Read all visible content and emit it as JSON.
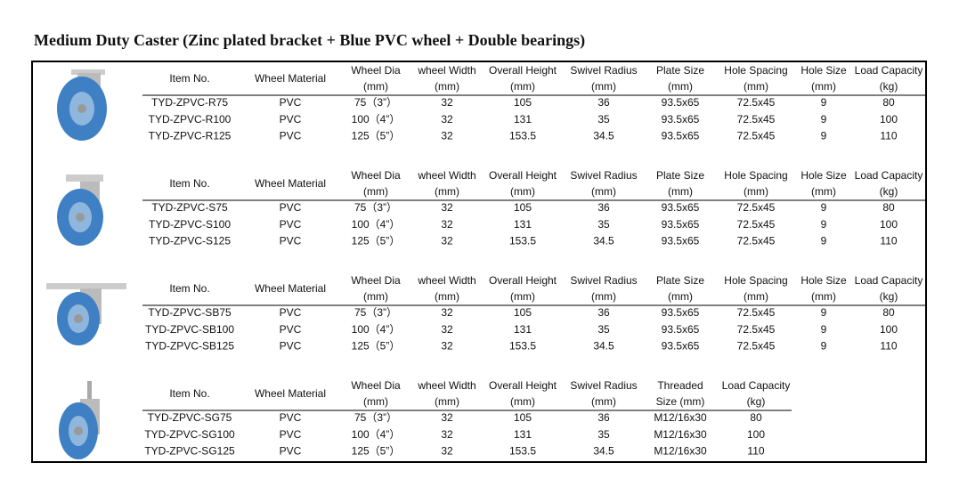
{
  "title": "Medium Duty Caster (Zinc plated bracket + Blue PVC wheel + Double bearings)",
  "sections": [
    {
      "header": [
        [
          "Item No."
        ],
        [
          "Wheel Material"
        ],
        [
          "Wheel Dia",
          "(mm)"
        ],
        [
          "wheel Width",
          "(mm)"
        ],
        [
          "Overall Height",
          "(mm)"
        ],
        [
          "Swivel Radius",
          "(mm)"
        ],
        [
          "Plate Size",
          "(mm)"
        ],
        [
          "Hole Spacing",
          "(mm)"
        ],
        [
          "Hole Size",
          "(mm)"
        ],
        [
          "Load Capacity",
          "(kg)"
        ]
      ],
      "rows": [
        [
          "TYD-ZPVC-R75",
          "PVC",
          "75（3”）",
          "32",
          "105",
          "36",
          "93.5x65",
          "72.5x45",
          "9",
          "80"
        ],
        [
          "TYD-ZPVC-R100",
          "PVC",
          "100（4”）",
          "32",
          "131",
          "35",
          "93.5x65",
          "72.5x45",
          "9",
          "100"
        ],
        [
          "TYD-ZPVC-R125",
          "PVC",
          "125（5”）",
          "32",
          "153.5",
          "34.5",
          "93.5x65",
          "72.5x45",
          "9",
          "110"
        ]
      ]
    },
    {
      "header": [
        [
          "Item No."
        ],
        [
          "Wheel Material"
        ],
        [
          "Wheel Dia",
          "(mm)"
        ],
        [
          "wheel Width",
          "(mm)"
        ],
        [
          "Overall Height",
          "(mm)"
        ],
        [
          "Swivel Radius",
          "(mm)"
        ],
        [
          "Plate Size",
          "(mm)"
        ],
        [
          "Hole Spacing",
          "(mm)"
        ],
        [
          "Hole Size",
          "(mm)"
        ],
        [
          "Load Capacity",
          "(kg)"
        ]
      ],
      "rows": [
        [
          "TYD-ZPVC-S75",
          "PVC",
          "75（3”）",
          "32",
          "105",
          "36",
          "93.5x65",
          "72.5x45",
          "9",
          "80"
        ],
        [
          "TYD-ZPVC-S100",
          "PVC",
          "100（4”）",
          "32",
          "131",
          "35",
          "93.5x65",
          "72.5x45",
          "9",
          "100"
        ],
        [
          "TYD-ZPVC-S125",
          "PVC",
          "125（5”）",
          "32",
          "153.5",
          "34.5",
          "93.5x65",
          "72.5x45",
          "9",
          "110"
        ]
      ]
    },
    {
      "header": [
        [
          "Item No."
        ],
        [
          "Wheel Material"
        ],
        [
          "Wheel Dia",
          "(mm)"
        ],
        [
          "wheel Width",
          "(mm)"
        ],
        [
          "Overall Height",
          "(mm)"
        ],
        [
          "Swivel Radius",
          "(mm)"
        ],
        [
          "Plate Size",
          "(mm)"
        ],
        [
          "Hole Spacing",
          "(mm)"
        ],
        [
          "Hole Size",
          "(mm)"
        ],
        [
          "Load Capacity",
          "(kg)"
        ]
      ],
      "rows": [
        [
          "TYD-ZPVC-SB75",
          "PVC",
          "75（3”）",
          "32",
          "105",
          "36",
          "93.5x65",
          "72.5x45",
          "9",
          "80"
        ],
        [
          "TYD-ZPVC-SB100",
          "PVC",
          "100（4”）",
          "32",
          "131",
          "35",
          "93.5x65",
          "72.5x45",
          "9",
          "100"
        ],
        [
          "TYD-ZPVC-SB125",
          "PVC",
          "125（5”）",
          "32",
          "153.5",
          "34.5",
          "93.5x65",
          "72.5x45",
          "9",
          "110"
        ]
      ]
    },
    {
      "header": [
        [
          "Item No."
        ],
        [
          "Wheel Material"
        ],
        [
          "Wheel Dia",
          "(mm)"
        ],
        [
          "wheel Width",
          "(mm)"
        ],
        [
          "Overall Height",
          "(mm)"
        ],
        [
          "Swivel Radius",
          "(mm)"
        ],
        [
          "Threaded",
          "Size (mm)"
        ],
        [
          "Load Capacity",
          "(kg)"
        ]
      ],
      "rows": [
        [
          "TYD-ZPVC-SG75",
          "PVC",
          "75（3”）",
          "32",
          "105",
          "36",
          "M12/16x30",
          "80"
        ],
        [
          "TYD-ZPVC-SG100",
          "PVC",
          "100（4”）",
          "32",
          "131",
          "35",
          "M12/16x30",
          "100"
        ],
        [
          "TYD-ZPVC-SG125",
          "PVC",
          "125（5”）",
          "32",
          "153.5",
          "34.5",
          "M12/16x30",
          "110"
        ]
      ]
    }
  ]
}
